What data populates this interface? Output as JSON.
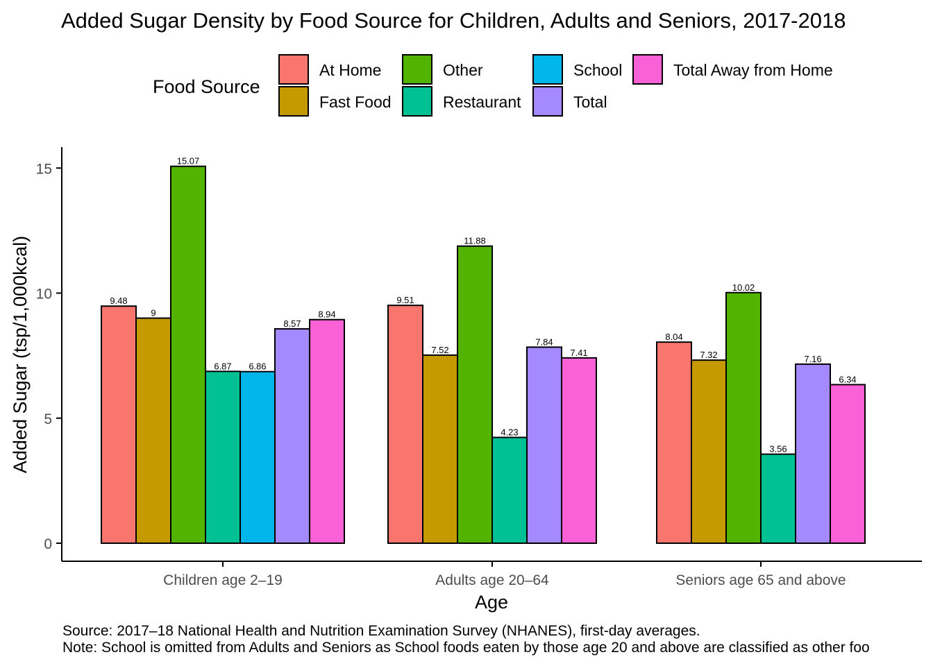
{
  "chart_data": {
    "type": "bar",
    "title": "Added Sugar Density by Food Source for Children, Adults and Seniors, 2017-2018",
    "xlabel": "Age",
    "ylabel": "Added Sugar (tsp/1,000kcal)",
    "ylim": [
      0,
      16
    ],
    "yticks": [
      "0",
      "5",
      "10",
      "15"
    ],
    "grid": false,
    "legend": {
      "title": "Food Source",
      "position": "top"
    },
    "categories": [
      "Children age 2–19",
      "Adults age 20–64",
      "Seniors age 65 and above"
    ],
    "series": [
      {
        "name": "At Home",
        "color": "#F8766D",
        "values": [
          9.48,
          9.51,
          8.04
        ],
        "labels": [
          "9.48",
          "9.51",
          "8.04"
        ]
      },
      {
        "name": "Fast Food",
        "color": "#C49A00",
        "values": [
          9,
          7.52,
          7.32
        ],
        "labels": [
          "9",
          "7.52",
          "7.32"
        ]
      },
      {
        "name": "Other",
        "color": "#53B400",
        "values": [
          15.07,
          11.88,
          10.02
        ],
        "labels": [
          "15.07",
          "11.88",
          "10.02"
        ]
      },
      {
        "name": "Restaurant",
        "color": "#00C094",
        "values": [
          6.87,
          4.23,
          3.56
        ],
        "labels": [
          "6.87",
          "4.23",
          "3.56"
        ]
      },
      {
        "name": "School",
        "color": "#00B6EB",
        "values": [
          6.86,
          null,
          null
        ],
        "labels": [
          "6.86",
          null,
          null
        ]
      },
      {
        "name": "Total",
        "color": "#A58AFF",
        "values": [
          8.57,
          7.84,
          7.16
        ],
        "labels": [
          "8.57",
          "7.84",
          "7.16"
        ]
      },
      {
        "name": "Total Away from Home",
        "color": "#FB61D7",
        "values": [
          8.94,
          7.41,
          6.34
        ],
        "labels": [
          "8.94",
          "7.41",
          "6.34"
        ]
      }
    ],
    "caption": [
      "Source: 2017–18 National Health and Nutrition Examination Survey (NHANES), first-day averages.",
      "Note: School is omitted from Adults and Seniors as School foods eaten by those age 20 and above are classified as other foo"
    ]
  }
}
